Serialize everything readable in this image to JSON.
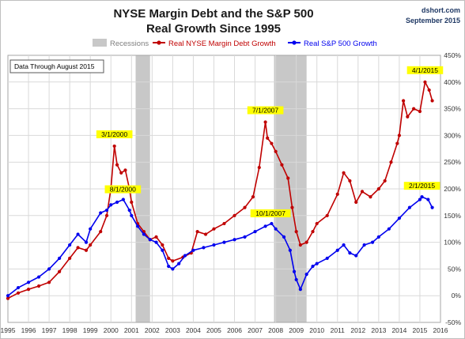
{
  "header": {
    "title_line1": "NYSE Margin Debt and the S&P 500",
    "title_line2": "Real Growth Since 1995",
    "source": "dshort.com",
    "date": "September 2015"
  },
  "note": "Data Through August 2015",
  "colors": {
    "margin": "#c00000",
    "sp500": "#0000ee",
    "recession": "#c8c8c8",
    "grid": "#d9d9d9",
    "annotation_bg": "#ffff00"
  },
  "chart_data": {
    "type": "line",
    "x_axis": {
      "range": [
        1995.0,
        2016.0
      ],
      "ticks": [
        1995,
        1996,
        1997,
        1998,
        1999,
        2000,
        2001,
        2002,
        2003,
        2004,
        2005,
        2006,
        2007,
        2008,
        2009,
        2010,
        2011,
        2012,
        2013,
        2014,
        2015,
        2016
      ]
    },
    "y_axis": {
      "range": [
        -50,
        450
      ],
      "side": "right",
      "ticks": [
        -50,
        0,
        50,
        100,
        150,
        200,
        250,
        300,
        350,
        400,
        450
      ],
      "tick_labels": [
        "-50%",
        "0%",
        "50%",
        "100%",
        "150%",
        "200%",
        "250%",
        "300%",
        "350%",
        "400%",
        "450%"
      ]
    },
    "grid": true,
    "legend_position": "top",
    "recessions": {
      "label": "Recessions",
      "periods": [
        [
          2001.2,
          2001.9
        ],
        [
          2007.92,
          2009.5
        ]
      ]
    },
    "series": [
      {
        "name": "Real NYSE Margin Debt Growth",
        "points": [
          [
            1995.0,
            -5
          ],
          [
            1995.5,
            5
          ],
          [
            1996.0,
            12
          ],
          [
            1996.5,
            18
          ],
          [
            1997.0,
            25
          ],
          [
            1997.5,
            45
          ],
          [
            1998.0,
            70
          ],
          [
            1998.4,
            90
          ],
          [
            1998.8,
            85
          ],
          [
            1999.0,
            95
          ],
          [
            1999.5,
            120
          ],
          [
            1999.8,
            150
          ],
          [
            2000.0,
            200
          ],
          [
            2000.17,
            280
          ],
          [
            2000.3,
            245
          ],
          [
            2000.5,
            230
          ],
          [
            2000.7,
            235
          ],
          [
            2000.9,
            200
          ],
          [
            2001.0,
            175
          ],
          [
            2001.3,
            135
          ],
          [
            2001.6,
            120
          ],
          [
            2001.9,
            105
          ],
          [
            2002.2,
            110
          ],
          [
            2002.5,
            95
          ],
          [
            2002.8,
            70
          ],
          [
            2003.0,
            65
          ],
          [
            2003.5,
            72
          ],
          [
            2003.9,
            80
          ],
          [
            2004.2,
            120
          ],
          [
            2004.6,
            115
          ],
          [
            2005.0,
            125
          ],
          [
            2005.5,
            135
          ],
          [
            2006.0,
            150
          ],
          [
            2006.5,
            165
          ],
          [
            2006.9,
            185
          ],
          [
            2007.2,
            240
          ],
          [
            2007.5,
            325
          ],
          [
            2007.6,
            295
          ],
          [
            2007.8,
            285
          ],
          [
            2008.0,
            270
          ],
          [
            2008.3,
            245
          ],
          [
            2008.6,
            220
          ],
          [
            2008.8,
            165
          ],
          [
            2009.0,
            120
          ],
          [
            2009.2,
            95
          ],
          [
            2009.5,
            100
          ],
          [
            2009.8,
            120
          ],
          [
            2010.0,
            135
          ],
          [
            2010.5,
            150
          ],
          [
            2011.0,
            190
          ],
          [
            2011.3,
            230
          ],
          [
            2011.6,
            215
          ],
          [
            2011.9,
            175
          ],
          [
            2012.2,
            195
          ],
          [
            2012.6,
            185
          ],
          [
            2013.0,
            200
          ],
          [
            2013.3,
            215
          ],
          [
            2013.6,
            250
          ],
          [
            2013.9,
            285
          ],
          [
            2014.0,
            300
          ],
          [
            2014.2,
            365
          ],
          [
            2014.4,
            335
          ],
          [
            2014.7,
            350
          ],
          [
            2015.0,
            345
          ],
          [
            2015.25,
            400
          ],
          [
            2015.45,
            385
          ],
          [
            2015.6,
            365
          ]
        ]
      },
      {
        "name": "Real S&P 500 Growth",
        "points": [
          [
            1995.0,
            0
          ],
          [
            1995.5,
            15
          ],
          [
            1996.0,
            25
          ],
          [
            1996.5,
            35
          ],
          [
            1997.0,
            50
          ],
          [
            1997.5,
            70
          ],
          [
            1998.0,
            95
          ],
          [
            1998.4,
            115
          ],
          [
            1998.8,
            100
          ],
          [
            1999.0,
            125
          ],
          [
            1999.5,
            155
          ],
          [
            1999.8,
            160
          ],
          [
            2000.0,
            170
          ],
          [
            2000.3,
            175
          ],
          [
            2000.6,
            180
          ],
          [
            2000.9,
            160
          ],
          [
            2001.0,
            150
          ],
          [
            2001.3,
            130
          ],
          [
            2001.6,
            115
          ],
          [
            2001.9,
            105
          ],
          [
            2002.2,
            100
          ],
          [
            2002.5,
            85
          ],
          [
            2002.8,
            55
          ],
          [
            2003.0,
            50
          ],
          [
            2003.3,
            60
          ],
          [
            2003.6,
            75
          ],
          [
            2004.0,
            85
          ],
          [
            2004.5,
            90
          ],
          [
            2005.0,
            95
          ],
          [
            2005.5,
            100
          ],
          [
            2006.0,
            105
          ],
          [
            2006.5,
            110
          ],
          [
            2007.0,
            120
          ],
          [
            2007.5,
            130
          ],
          [
            2007.8,
            135
          ],
          [
            2008.0,
            125
          ],
          [
            2008.4,
            110
          ],
          [
            2008.7,
            85
          ],
          [
            2008.9,
            45
          ],
          [
            2009.0,
            30
          ],
          [
            2009.2,
            12
          ],
          [
            2009.5,
            40
          ],
          [
            2009.8,
            55
          ],
          [
            2010.0,
            60
          ],
          [
            2010.5,
            70
          ],
          [
            2011.0,
            85
          ],
          [
            2011.3,
            95
          ],
          [
            2011.6,
            80
          ],
          [
            2011.9,
            75
          ],
          [
            2012.3,
            95
          ],
          [
            2012.7,
            100
          ],
          [
            2013.0,
            110
          ],
          [
            2013.5,
            125
          ],
          [
            2014.0,
            145
          ],
          [
            2014.5,
            165
          ],
          [
            2015.0,
            180
          ],
          [
            2015.1,
            185
          ],
          [
            2015.4,
            180
          ],
          [
            2015.6,
            165
          ]
        ]
      }
    ],
    "annotations": [
      {
        "text": "3/1/2000",
        "x": 2000.17,
        "y": 280
      },
      {
        "text": "8/1/2000",
        "x": 2000.58,
        "y": 180
      },
      {
        "text": "7/1/2007",
        "x": 2007.5,
        "y": 325
      },
      {
        "text": "10/1/2007",
        "x": 2007.75,
        "y": 135
      },
      {
        "text": "4/1/2015",
        "x": 2015.25,
        "y": 400
      },
      {
        "text": "2/1/2015",
        "x": 2015.1,
        "y": 185
      }
    ]
  }
}
